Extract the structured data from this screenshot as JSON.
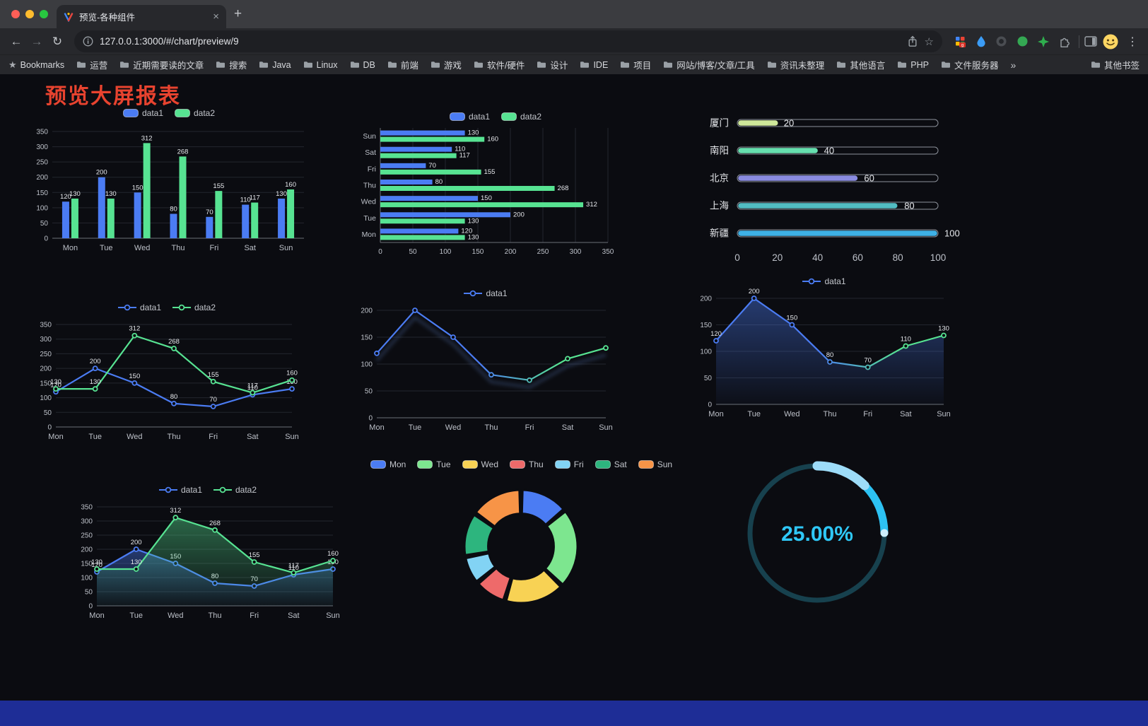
{
  "browser": {
    "tab_title": "预览-各种组件",
    "url": "127.0.0.1:3000/#/chart/preview/9"
  },
  "icons": {
    "back": "←",
    "forward": "→",
    "reload": "↻",
    "bookmark_star": "☆",
    "menu": "⋮",
    "new_tab": "+",
    "tab_close": "×",
    "overflow": "»",
    "bookmarks_icon": "★"
  },
  "bookmarks_bar": {
    "items": [
      {
        "label": "Bookmarks",
        "icon": "star"
      },
      {
        "label": "运营"
      },
      {
        "label": "近期需要读的文章"
      },
      {
        "label": "搜索"
      },
      {
        "label": "Java"
      },
      {
        "label": "Linux"
      },
      {
        "label": "DB"
      },
      {
        "label": "前端"
      },
      {
        "label": "游戏"
      },
      {
        "label": "软件/硬件"
      },
      {
        "label": "设计"
      },
      {
        "label": "IDE"
      },
      {
        "label": "项目"
      },
      {
        "label": "网站/博客/文章/工具"
      },
      {
        "label": "资讯未整理"
      },
      {
        "label": "其他语言"
      },
      {
        "label": "PHP"
      },
      {
        "label": "文件服务器"
      }
    ],
    "other_bookmarks": "其他书签"
  },
  "page": {
    "title": "预览大屏报表"
  },
  "chart_data": [
    {
      "id": "c1",
      "type": "bar",
      "legend": "rect",
      "labels": true,
      "categories": [
        "Mon",
        "Tue",
        "Wed",
        "Thu",
        "Fri",
        "Sat",
        "Sun"
      ],
      "ylim": [
        0,
        350
      ],
      "yticks": [
        0,
        50,
        100,
        150,
        200,
        250,
        300,
        350
      ],
      "series": [
        {
          "name": "data1",
          "color": "#4b7cf3",
          "values": [
            120,
            200,
            150,
            80,
            70,
            110,
            130
          ]
        },
        {
          "name": "data2",
          "color": "#57e392",
          "values": [
            130,
            130,
            312,
            268,
            155,
            117,
            160
          ]
        }
      ]
    },
    {
      "id": "c2",
      "type": "hbar",
      "legend": "rect",
      "labels": true,
      "categories": [
        "Mon",
        "Tue",
        "Wed",
        "Thu",
        "Fri",
        "Sat",
        "Sun"
      ],
      "xlim": [
        0,
        350
      ],
      "xticks": [
        0,
        50,
        100,
        150,
        200,
        250,
        300,
        350
      ],
      "series": [
        {
          "name": "data1",
          "color": "#4b7cf3",
          "values": [
            120,
            200,
            150,
            80,
            70,
            110,
            130
          ]
        },
        {
          "name": "data2",
          "color": "#57e392",
          "values": [
            130,
            130,
            312,
            268,
            155,
            117,
            160
          ]
        }
      ]
    },
    {
      "id": "c3",
      "type": "progress",
      "xlim": [
        0,
        100
      ],
      "xticks": [
        0,
        20,
        40,
        60,
        80,
        100
      ],
      "rows": [
        {
          "label": "厦门",
          "value": 20,
          "color": "#cfe89a"
        },
        {
          "label": "南阳",
          "value": 40,
          "color": "#66dfae"
        },
        {
          "label": "北京",
          "value": 60,
          "color": "#8a8be0"
        },
        {
          "label": "上海",
          "value": 80,
          "color": "#52bcc2"
        },
        {
          "label": "新疆",
          "value": 100,
          "color": "#3eb1e6"
        }
      ]
    },
    {
      "id": "c4",
      "type": "line",
      "legend": "line",
      "labels": true,
      "categories": [
        "Mon",
        "Tue",
        "Wed",
        "Thu",
        "Fri",
        "Sat",
        "Sun"
      ],
      "ylim": [
        0,
        350
      ],
      "yticks": [
        0,
        50,
        100,
        150,
        200,
        250,
        300,
        350
      ],
      "series": [
        {
          "name": "data1",
          "color": "#4b7cf3",
          "values": [
            120,
            200,
            150,
            80,
            70,
            110,
            130
          ]
        },
        {
          "name": "data2",
          "color": "#57e392",
          "values": [
            130,
            130,
            312,
            268,
            155,
            117,
            160
          ]
        }
      ]
    },
    {
      "id": "c5",
      "type": "line",
      "legend": "line",
      "labels": false,
      "shadow": true,
      "categories": [
        "Mon",
        "Tue",
        "Wed",
        "Thu",
        "Fri",
        "Sat",
        "Sun"
      ],
      "ylim": [
        0,
        200
      ],
      "yticks": [
        0,
        50,
        100,
        150,
        200
      ],
      "series": [
        {
          "name": "data1",
          "colors": [
            "#4b7cf3",
            "#57e392"
          ],
          "values": [
            120,
            200,
            150,
            80,
            70,
            110,
            130
          ]
        }
      ]
    },
    {
      "id": "c6",
      "type": "line",
      "legend": "line",
      "labels": true,
      "area": true,
      "categories": [
        "Mon",
        "Tue",
        "Wed",
        "Thu",
        "Fri",
        "Sat",
        "Sun"
      ],
      "ylim": [
        0,
        200
      ],
      "yticks": [
        0,
        50,
        100,
        150,
        200
      ],
      "series": [
        {
          "name": "data1",
          "colors": [
            "#4b7cf3",
            "#57e392"
          ],
          "area_color": "#4b7cf3",
          "values": [
            120,
            200,
            150,
            80,
            70,
            110,
            130
          ]
        }
      ]
    },
    {
      "id": "c7",
      "type": "line",
      "legend": "line",
      "labels": true,
      "area": true,
      "categories": [
        "Mon",
        "Tue",
        "Wed",
        "Thu",
        "Fri",
        "Sat",
        "Sun"
      ],
      "ylim": [
        0,
        350
      ],
      "yticks": [
        0,
        50,
        100,
        150,
        200,
        250,
        300,
        350
      ],
      "series": [
        {
          "name": "data1",
          "color": "#4b7cf3",
          "values": [
            120,
            200,
            150,
            80,
            70,
            110,
            130
          ]
        },
        {
          "name": "data2",
          "color": "#57e392",
          "values": [
            130,
            130,
            312,
            268,
            155,
            117,
            160
          ]
        }
      ]
    },
    {
      "id": "c8",
      "type": "pie",
      "legend": "rect",
      "inner_radius_ratio": 0.58,
      "slices": [
        {
          "name": "Mon",
          "value": 120,
          "color": "#4b7cf3"
        },
        {
          "name": "Tue",
          "value": 200,
          "color": "#7de68f"
        },
        {
          "name": "Wed",
          "value": 150,
          "color": "#f8d254"
        },
        {
          "name": "Thu",
          "value": 80,
          "color": "#ee6a6a"
        },
        {
          "name": "Fri",
          "value": 70,
          "color": "#82d3f4"
        },
        {
          "name": "Sat",
          "value": 110,
          "color": "#2db57e"
        },
        {
          "name": "Sun",
          "value": 130,
          "color": "#f79447"
        }
      ]
    },
    {
      "id": "c9",
      "type": "gauge",
      "value": 25,
      "label": "25.00%",
      "color": "#2dc2f3",
      "track_color": "#17414e"
    }
  ]
}
